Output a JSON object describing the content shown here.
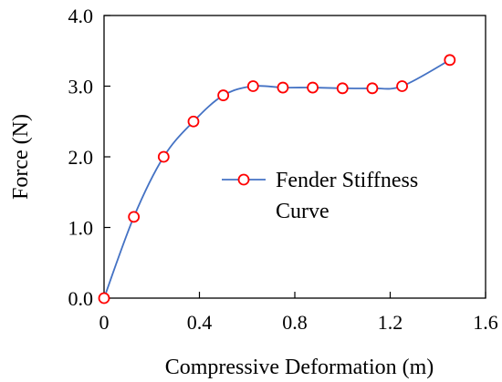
{
  "chart_data": {
    "type": "line",
    "title": "",
    "xlabel": "Compressive Deformation (m)",
    "ylabel": "Force (N)",
    "xlim": [
      0,
      1.6
    ],
    "ylim": [
      0,
      4.0
    ],
    "xticks": [
      0,
      0.4,
      0.8,
      1.2,
      1.6
    ],
    "yticks": [
      0,
      1.0,
      2.0,
      3.0,
      4.0
    ],
    "xtick_labels": [
      "0",
      "0.4",
      "0.8",
      "1.2",
      "1.6"
    ],
    "ytick_labels": [
      "0.0",
      "1.0",
      "2.0",
      "3.0",
      "4.0"
    ],
    "grid": false,
    "legend_position": "center-right",
    "series": [
      {
        "name": "Fender Stiffness Curve",
        "legend_lines": [
          "Fender Stiffness",
          "Curve"
        ],
        "line_color": "#4472C4",
        "marker_color": "#FF0000",
        "marker": "open-circle",
        "x": [
          0,
          0.125,
          0.25,
          0.375,
          0.5,
          0.625,
          0.75,
          0.875,
          1.0,
          1.125,
          1.25,
          1.45
        ],
        "y": [
          0.0,
          1.15,
          2.0,
          2.5,
          2.87,
          3.0,
          2.98,
          2.98,
          2.97,
          2.97,
          3.0,
          3.37
        ]
      }
    ]
  }
}
